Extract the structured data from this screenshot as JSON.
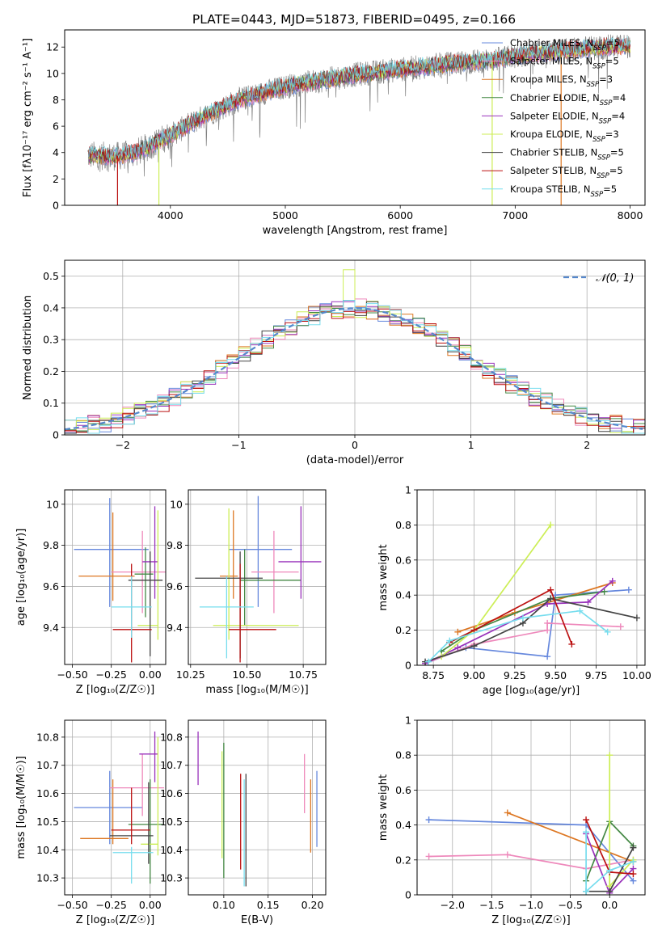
{
  "figure": {
    "title": "PLATE=0443, MJD=51873, FIBERID=0495, z=0.166"
  },
  "colors": {
    "Chabrier MILES": "#6688dd",
    "Salpeter MILES": "#ee88bb",
    "Kroupa MILES": "#dd7722",
    "Chabrier ELODIE": "#448844",
    "Salpeter ELODIE": "#9933bb",
    "Kroupa ELODIE": "#ccee55",
    "Chabrier STELIB": "#444444",
    "Salpeter STELIB": "#bb1111",
    "Kroupa STELIB": "#77ddee",
    "spectrum": "#808080",
    "normal_curve": "#5588cc",
    "grid": "#b0b0b0"
  },
  "chart_data": [
    {
      "id": "spectrum",
      "type": "line",
      "title": "PLATE=0443, MJD=51873, FIBERID=0495, z=0.166",
      "xlabel": "wavelength [Angstrom, rest frame]",
      "ylabel": "Flux [fλ10⁻¹⁷ erg cm⁻² s⁻¹ A⁻¹]",
      "xlim": [
        3080,
        8130
      ],
      "ylim": [
        0,
        13.3
      ],
      "xticks": [
        4000,
        5000,
        6000,
        7000,
        8000
      ],
      "yticks": [
        0,
        2,
        4,
        6,
        8,
        10,
        12
      ],
      "grid": false,
      "legend_position": "upper-right",
      "spectrum_range": [
        3280,
        8000
      ],
      "spectrum_shape": {
        "x": [
          3280,
          3500,
          3600,
          3700,
          3800,
          3900,
          4000,
          4100,
          4200,
          4300,
          4400,
          4500,
          4600,
          4800,
          5000,
          5200,
          5400,
          5600,
          5800,
          6000,
          6200,
          6500,
          6800,
          7000,
          7200,
          7400,
          7600,
          7800,
          8000
        ],
        "y": [
          3.8,
          3.7,
          3.8,
          4.0,
          4.4,
          4.9,
          5.3,
          5.8,
          6.3,
          6.8,
          7.2,
          7.6,
          8.0,
          8.5,
          9.0,
          9.3,
          9.6,
          9.9,
          10.1,
          10.3,
          10.5,
          10.8,
          11.0,
          11.3,
          11.5,
          11.7,
          11.9,
          12.0,
          12.1
        ]
      },
      "series": [
        {
          "name": "Chabrier MILES",
          "nssp": "5"
        },
        {
          "name": "Salpeter MILES",
          "nssp": "5"
        },
        {
          "name": "Kroupa MILES",
          "nssp": "3"
        },
        {
          "name": "Chabrier ELODIE",
          "nssp": "4"
        },
        {
          "name": "Salpeter ELODIE",
          "nssp": "4"
        },
        {
          "name": "Kroupa ELODIE",
          "nssp": "3"
        },
        {
          "name": "Chabrier STELIB",
          "nssp": "5"
        },
        {
          "name": "Salpeter STELIB",
          "nssp": "5"
        },
        {
          "name": "Kroupa STELIB",
          "nssp": "5"
        }
      ],
      "drops": [
        {
          "x": 3540,
          "color_of": "Salpeter STELIB"
        },
        {
          "x": 3900,
          "color_of": "Kroupa ELODIE"
        },
        {
          "x": 6800,
          "color_of": "Kroupa ELODIE"
        },
        {
          "x": 7400,
          "color_of": "Kroupa MILES"
        }
      ]
    },
    {
      "id": "residuals",
      "type": "histogram",
      "xlabel": "(data-model)/error",
      "ylabel": "Normed distribution",
      "xlim": [
        -2.5,
        2.5
      ],
      "ylim": [
        0,
        0.55
      ],
      "xticks": [
        -2,
        -1,
        0,
        1,
        2
      ],
      "yticks": [
        0,
        0.1,
        0.2,
        0.3,
        0.4,
        0.5
      ],
      "grid": true,
      "bin_width": 0.1,
      "legend": {
        "label": "𝒩(0, 1)",
        "position": "upper-right"
      },
      "spikes": [
        {
          "series": "Kroupa ELODIE",
          "x": -0.05,
          "value": 0.52
        }
      ]
    },
    {
      "id": "age_vs_Z",
      "type": "errorbar",
      "xlabel": "Z [log₁₀(Z/Z☉)]",
      "ylabel": "age  [log₁₀(age/yr)]",
      "xlim": [
        -0.55,
        0.1
      ],
      "ylim": [
        9.22,
        10.07
      ],
      "xticks": [
        -0.5,
        -0.25,
        0.0
      ],
      "xtick_labels": [
        "−0.50",
        "−0.25",
        "0.00"
      ],
      "yticks": [
        9.4,
        9.6,
        9.8,
        10.0
      ],
      "grid": true,
      "points": [
        {
          "series": "Chabrier MILES",
          "x": -0.26,
          "y": 9.78,
          "xerr": [
            0.23,
            0.25
          ],
          "yerr": [
            0.28,
            0.25
          ]
        },
        {
          "series": "Kroupa MILES",
          "x": -0.24,
          "y": 9.65,
          "xerr": [
            0.22,
            0.14
          ],
          "yerr": [
            0.12,
            0.31
          ]
        },
        {
          "series": "Salpeter MILES",
          "x": -0.05,
          "y": 9.67,
          "xerr": [
            0.2,
            0.15
          ],
          "yerr": [
            0.2,
            0.2
          ]
        },
        {
          "series": "Chabrier ELODIE",
          "x": -0.03,
          "y": 9.66,
          "xerr": [
            0.07,
            0.05
          ],
          "yerr": [
            0.21,
            0.13
          ]
        },
        {
          "series": "Salpeter ELODIE",
          "x": 0.03,
          "y": 9.72,
          "xerr": [
            0.08,
            0.02
          ],
          "yerr": [
            0.18,
            0.27
          ]
        },
        {
          "series": "Kroupa ELODIE",
          "x": 0.05,
          "y": 9.41,
          "xerr": [
            0.13,
            0.0
          ],
          "yerr": [
            0.07,
            0.56
          ]
        },
        {
          "series": "Chabrier STELIB",
          "x": 0.0,
          "y": 9.63,
          "xerr": [
            0.14,
            0.08
          ],
          "yerr": [
            0.37,
            0.14
          ]
        },
        {
          "series": "Salpeter STELIB",
          "x": -0.12,
          "y": 9.39,
          "xerr": [
            0.12,
            0.13
          ],
          "yerr": [
            0.16,
            0.32
          ]
        },
        {
          "series": "Kroupa STELIB",
          "x": -0.12,
          "y": 9.5,
          "xerr": [
            0.13,
            0.13
          ],
          "yerr": [
            0.15,
            0.15
          ]
        }
      ]
    },
    {
      "id": "age_vs_mass",
      "type": "errorbar",
      "xlabel": "mass [log₁₀(M/M☉)]",
      "xlim": [
        10.24,
        10.85
      ],
      "ylim": [
        9.22,
        10.07
      ],
      "xticks": [
        10.25,
        10.5,
        10.75
      ],
      "xtick_labels": [
        "10.25",
        "10.50",
        "10.75"
      ],
      "yticks": [
        9.4,
        9.6,
        9.8,
        10.0
      ],
      "grid": true,
      "points": [
        {
          "series": "Chabrier MILES",
          "x": 10.55,
          "y": 9.78,
          "xerr": [
            0.13,
            0.15
          ],
          "yerr": [
            0.28,
            0.26
          ]
        },
        {
          "series": "Kroupa MILES",
          "x": 10.44,
          "y": 9.65,
          "xerr": [
            0.06,
            0.02
          ],
          "yerr": [
            0.11,
            0.32
          ]
        },
        {
          "series": "Salpeter MILES",
          "x": 10.62,
          "y": 9.67,
          "xerr": [
            0.1,
            0.11
          ],
          "yerr": [
            0.2,
            0.2
          ]
        },
        {
          "series": "Chabrier ELODIE",
          "x": 10.49,
          "y": 9.63,
          "xerr": [
            0.02,
            0.25
          ],
          "yerr": [
            0.22,
            0.15
          ]
        },
        {
          "series": "Salpeter ELODIE",
          "x": 10.74,
          "y": 9.72,
          "xerr": [
            0.1,
            0.09
          ],
          "yerr": [
            0.18,
            0.27
          ]
        },
        {
          "series": "Kroupa ELODIE",
          "x": 10.42,
          "y": 9.41,
          "xerr": [
            0.07,
            0.31
          ],
          "yerr": [
            0.07,
            0.57
          ]
        },
        {
          "series": "Chabrier STELIB",
          "x": 10.47,
          "y": 9.64,
          "xerr": [
            0.2,
            0.1
          ],
          "yerr": [
            0.39,
            0.13
          ]
        },
        {
          "series": "Salpeter STELIB",
          "x": 10.47,
          "y": 9.39,
          "xerr": [
            0.05,
            0.16
          ],
          "yerr": [
            0.16,
            0.32
          ]
        },
        {
          "series": "Kroupa STELIB",
          "x": 10.41,
          "y": 9.5,
          "xerr": [
            0.12,
            0.12
          ],
          "yerr": [
            0.25,
            0.15
          ]
        }
      ]
    },
    {
      "id": "weight_vs_age",
      "type": "line",
      "xlabel": "age  [log₁₀(age/yr)]",
      "ylabel": "mass weight",
      "xlim": [
        8.65,
        10.05
      ],
      "ylim": [
        0,
        1
      ],
      "xticks": [
        8.75,
        9.0,
        9.25,
        9.5,
        9.75,
        10.0
      ],
      "xtick_labels": [
        "8.75",
        "9.00",
        "9.25",
        "9.50",
        "9.75",
        "10.00"
      ],
      "yticks": [
        0,
        0.2,
        0.4,
        0.6,
        0.8,
        1.0
      ],
      "grid": true,
      "series": [
        {
          "name": "Chabrier MILES",
          "x": [
            8.7,
            8.95,
            9.45,
            9.5,
            9.95
          ],
          "y": [
            0.01,
            0.1,
            0.05,
            0.4,
            0.43
          ]
        },
        {
          "name": "Salpeter MILES",
          "x": [
            8.7,
            9.0,
            9.45,
            9.45,
            9.9
          ],
          "y": [
            0.01,
            0.12,
            0.2,
            0.24,
            0.22
          ]
        },
        {
          "name": "Kroupa MILES",
          "x": [
            8.9,
            9.25,
            9.85
          ],
          "y": [
            0.19,
            0.3,
            0.47
          ]
        },
        {
          "name": "Chabrier ELODIE",
          "x": [
            8.8,
            9.0,
            9.47,
            9.8
          ],
          "y": [
            0.08,
            0.2,
            0.38,
            0.42
          ]
        },
        {
          "name": "Salpeter ELODIE",
          "x": [
            8.7,
            8.9,
            9.45,
            9.7,
            9.85
          ],
          "y": [
            0.01,
            0.1,
            0.35,
            0.36,
            0.48
          ]
        },
        {
          "name": "Kroupa ELODIE",
          "x": [
            8.8,
            9.0,
            9.47
          ],
          "y": [
            0.05,
            0.2,
            0.8
          ]
        },
        {
          "name": "Chabrier STELIB",
          "x": [
            8.7,
            9.0,
            9.3,
            9.47,
            10.0
          ],
          "y": [
            0.02,
            0.11,
            0.24,
            0.38,
            0.27
          ]
        },
        {
          "name": "Salpeter STELIB",
          "x": [
            8.85,
            9.0,
            9.47,
            9.6
          ],
          "y": [
            0.13,
            0.2,
            0.43,
            0.12
          ]
        },
        {
          "name": "Kroupa STELIB",
          "x": [
            8.72,
            8.85,
            9.3,
            9.65,
            9.82
          ],
          "y": [
            0.02,
            0.14,
            0.27,
            0.31,
            0.19
          ]
        }
      ]
    },
    {
      "id": "mass_vs_Z",
      "type": "errorbar",
      "xlabel": "Z [log₁₀(Z/Z☉)]",
      "ylabel": "mass [log₁₀(M/M☉)]",
      "xlim": [
        -0.55,
        0.1
      ],
      "ylim": [
        10.24,
        10.86
      ],
      "xticks": [
        -0.5,
        -0.25,
        0.0
      ],
      "xtick_labels": [
        "−0.50",
        "−0.25",
        "0.00"
      ],
      "yticks": [
        10.3,
        10.4,
        10.5,
        10.6,
        10.7,
        10.8
      ],
      "grid": true,
      "points": [
        {
          "series": "Chabrier MILES",
          "x": -0.26,
          "y": 10.55,
          "xerr": [
            0.23,
            0.21
          ],
          "yerr": [
            0.13,
            0.13
          ]
        },
        {
          "series": "Kroupa MILES",
          "x": -0.24,
          "y": 10.44,
          "xerr": [
            0.21,
            0.1
          ],
          "yerr": [
            0.02,
            0.21
          ]
        },
        {
          "series": "Salpeter MILES",
          "x": -0.05,
          "y": 10.62,
          "xerr": [
            0.21,
            0.14
          ],
          "yerr": [
            0.1,
            0.12
          ]
        },
        {
          "series": "Chabrier ELODIE",
          "x": 0.0,
          "y": 10.49,
          "xerr": [
            0.14,
            0.08
          ],
          "yerr": [
            0.21,
            0.16
          ]
        },
        {
          "series": "Salpeter ELODIE",
          "x": 0.03,
          "y": 10.74,
          "xerr": [
            0.1,
            0.02
          ],
          "yerr": [
            0.1,
            0.08
          ]
        },
        {
          "series": "Kroupa ELODIE",
          "x": 0.05,
          "y": 10.42,
          "xerr": [
            0.11,
            0.0
          ],
          "yerr": [
            0.04,
            0.38
          ]
        },
        {
          "series": "Chabrier STELIB",
          "x": -0.01,
          "y": 10.45,
          "xerr": [
            0.25,
            0.03
          ],
          "yerr": [
            0.1,
            0.19
          ]
        },
        {
          "series": "Salpeter STELIB",
          "x": -0.12,
          "y": 10.47,
          "xerr": [
            0.13,
            0.12
          ],
          "yerr": [
            0.05,
            0.15
          ]
        },
        {
          "series": "Kroupa STELIB",
          "x": -0.12,
          "y": 10.39,
          "xerr": [
            0.12,
            0.14
          ],
          "yerr": [
            0.11,
            0.02
          ]
        }
      ]
    },
    {
      "id": "mass_vs_ebv",
      "type": "errorbar",
      "xlabel": "E(B-V)",
      "xlim": [
        0.06,
        0.215
      ],
      "ylim": [
        10.24,
        10.86
      ],
      "xticks": [
        0.1,
        0.15,
        0.2
      ],
      "xtick_labels": [
        "0.10",
        "0.15",
        "0.20"
      ],
      "yticks": [
        10.3,
        10.4,
        10.5,
        10.6,
        10.7,
        10.8
      ],
      "grid": true,
      "points": [
        {
          "series": "Chabrier MILES",
          "x": 0.205,
          "y": 10.55,
          "yerr": [
            0.14,
            0.13
          ]
        },
        {
          "series": "Kroupa MILES",
          "x": 0.198,
          "y": 10.44,
          "yerr": [
            0.05,
            0.21
          ]
        },
        {
          "series": "Salpeter MILES",
          "x": 0.191,
          "y": 10.62,
          "yerr": [
            0.09,
            0.12
          ]
        },
        {
          "series": "Chabrier ELODIE",
          "x": 0.1,
          "y": 10.49,
          "yerr": [
            0.19,
            0.29
          ]
        },
        {
          "series": "Salpeter ELODIE",
          "x": 0.071,
          "y": 10.73,
          "yerr": [
            0.1,
            0.09
          ]
        },
        {
          "series": "Kroupa ELODIE",
          "x": 0.098,
          "y": 10.55,
          "yerr": [
            0.18,
            0.2
          ]
        },
        {
          "series": "Chabrier STELIB",
          "x": 0.125,
          "y": 10.46,
          "yerr": [
            0.19,
            0.21
          ]
        },
        {
          "series": "Salpeter STELIB",
          "x": 0.119,
          "y": 10.47,
          "yerr": [
            0.14,
            0.2
          ]
        },
        {
          "series": "Kroupa STELIB",
          "x": 0.123,
          "y": 10.38,
          "yerr": [
            0.11,
            0.27
          ]
        }
      ]
    },
    {
      "id": "weight_vs_Z",
      "type": "line",
      "xlabel": "Z [log₁₀(Z/Z☉)]",
      "ylabel": "mass weight",
      "xlim": [
        -2.45,
        0.45
      ],
      "ylim": [
        0,
        1
      ],
      "xticks": [
        -2.0,
        -1.5,
        -1.0,
        -0.5,
        0.0
      ],
      "xtick_labels": [
        "−2.0",
        "−1.5",
        "−1.0",
        "−0.5",
        "0.0"
      ],
      "yticks": [
        0,
        0.2,
        0.4,
        0.6,
        0.8,
        1.0
      ],
      "grid": true,
      "series": [
        {
          "name": "Chabrier MILES",
          "x": [
            -2.3,
            -0.3,
            0.3
          ],
          "y": [
            0.43,
            0.4,
            0.08
          ]
        },
        {
          "name": "Salpeter MILES",
          "x": [
            -2.3,
            -1.3,
            -0.3,
            0.3
          ],
          "y": [
            0.22,
            0.23,
            0.15,
            0.2
          ]
        },
        {
          "name": "Kroupa MILES",
          "x": [
            -1.3,
            0.3
          ],
          "y": [
            0.47,
            0.19
          ]
        },
        {
          "name": "Chabrier ELODIE",
          "x": [
            -0.3,
            0.0,
            0.3
          ],
          "y": [
            0.08,
            0.42,
            0.28
          ]
        },
        {
          "name": "Salpeter ELODIE",
          "x": [
            -0.3,
            0.0,
            0.3
          ],
          "y": [
            0.35,
            0.01,
            0.15
          ]
        },
        {
          "name": "Kroupa ELODIE",
          "x": [
            0.0,
            0.0,
            0.3
          ],
          "y": [
            0.8,
            0.05,
            0.2
          ]
        },
        {
          "name": "Chabrier STELIB",
          "x": [
            -0.3,
            0.0,
            0.3
          ],
          "y": [
            0.02,
            0.02,
            0.27
          ]
        },
        {
          "name": "Salpeter STELIB",
          "x": [
            -0.3,
            0.0,
            0.3
          ],
          "y": [
            0.43,
            0.13,
            0.12
          ]
        },
        {
          "name": "Kroupa STELIB",
          "x": [
            -0.3,
            -0.3,
            0.0,
            0.3
          ],
          "y": [
            0.36,
            0.02,
            0.14,
            0.19
          ]
        }
      ]
    }
  ]
}
